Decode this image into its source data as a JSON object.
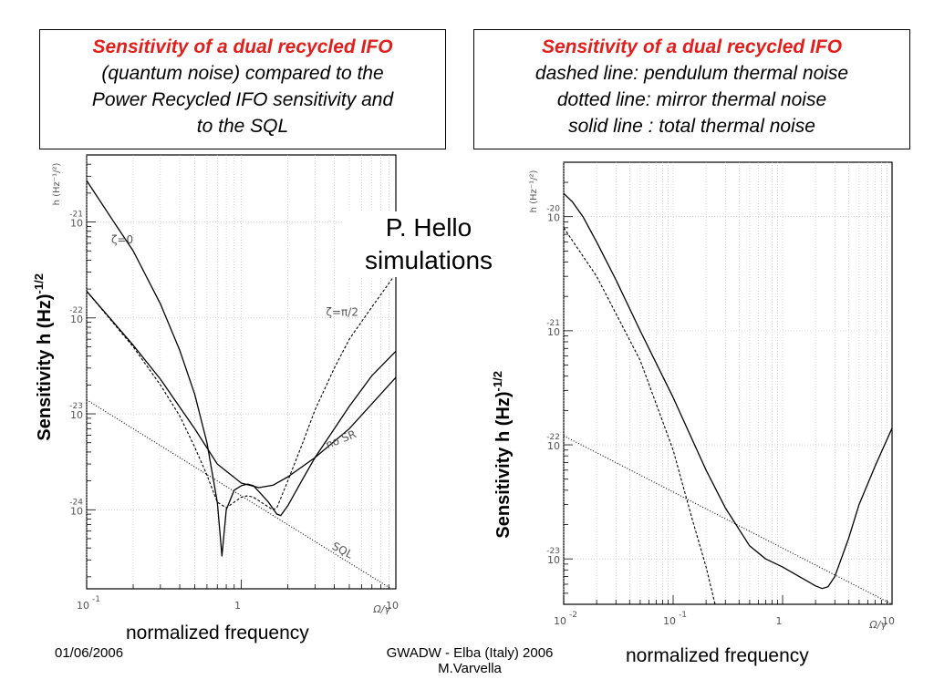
{
  "box_left": {
    "title": "Sensitivity of a dual recycled IFO",
    "lines": [
      "(quantum noise) compared to the",
      "Power Recycled IFO sensitivity and",
      "to the SQL"
    ]
  },
  "box_right": {
    "title": "Sensitivity of a dual recycled IFO",
    "lines": [
      "dashed line: pendulum thermal noise",
      "dotted line: mirror thermal noise",
      "solid line : total thermal noise"
    ]
  },
  "simulation_note": [
    "P. Hello",
    "simulations"
  ],
  "footer": {
    "date": "01/06/2006",
    "conference": "GWADW - Elba (Italy) 2006",
    "author": "M.Varvella"
  },
  "chart_data": [
    {
      "type": "line",
      "log_x": true,
      "log_y": true,
      "xlim": [
        0.1,
        10
      ],
      "ylim": [
        1.5e-25,
        5e-21
      ],
      "grid": true,
      "outer_xlabel": "normalized frequency",
      "outer_ylabel": "Sensitivity h (Hz)",
      "outer_ylabel_sup": "-1/2",
      "axis_xlabel": "Ω/γ",
      "axis_ylabel": "h (Hz⁻¹/²)",
      "x_ticks": [
        {
          "value": 0.1,
          "base": "10",
          "exp": "-1"
        },
        {
          "value": 1,
          "base": "1",
          "exp": ""
        },
        {
          "value": 10,
          "base": "10",
          "exp": ""
        }
      ],
      "y_ticks": [
        {
          "value": 1e-24,
          "base": "10",
          "exp": "-24"
        },
        {
          "value": 1e-23,
          "base": "10",
          "exp": "-23"
        },
        {
          "value": 1e-22,
          "base": "10",
          "exp": "-22"
        },
        {
          "value": 1e-21,
          "base": "10",
          "exp": "-21"
        }
      ],
      "annotations": [
        {
          "text": "ζ=0",
          "x": 0.17,
          "y": 6e-22
        },
        {
          "text": "ζ=π/2",
          "x": 4.5,
          "y": 1.05e-22
        },
        {
          "text": "no SR",
          "x": 4.5,
          "y": 5e-24
        },
        {
          "text": "SQL",
          "x": 4.4,
          "y": 3.5e-25
        }
      ],
      "series": [
        {
          "style": "solid",
          "x": [
            0.1,
            0.15,
            0.2,
            0.3,
            0.4,
            0.5,
            0.6,
            0.7,
            0.75,
            0.8,
            0.9,
            1.0,
            1.1,
            1.2,
            1.3,
            1.5,
            1.7,
            1.8,
            2.0,
            2.5,
            3,
            4,
            5,
            7,
            10
          ],
          "y": [
            2.7e-21,
            1e-21,
            5e-22,
            1.4e-22,
            4.6e-23,
            1.6e-23,
            5e-24,
            1.2e-24,
            3.3e-25,
            1e-24,
            1.6e-24,
            1.78e-24,
            1.85e-24,
            1.78e-24,
            1.55e-24,
            1.2e-24,
            9e-25,
            8.7e-25,
            1.1e-24,
            2.1e-24,
            3.5e-24,
            7e-24,
            1.2e-23,
            2.5e-23,
            4.5e-23
          ]
        },
        {
          "style": "solid",
          "x": [
            0.1,
            0.2,
            0.3,
            0.5,
            0.7,
            1.0,
            1.3,
            1.6,
            2.0,
            3,
            5,
            10
          ],
          "y": [
            1.9e-22,
            5.2e-23,
            2.3e-23,
            7e-24,
            3e-24,
            1.9e-24,
            1.7e-24,
            1.8e-24,
            2.2e-24,
            3.5e-24,
            7e-24,
            2.4e-23
          ]
        },
        {
          "style": "dashed",
          "x": [
            0.1,
            0.2,
            0.3,
            0.4,
            0.5,
            0.6,
            0.7,
            0.8,
            0.9,
            1.0,
            1.1,
            1.2,
            1.4,
            1.6,
            1.7,
            2.0,
            2.5,
            3,
            4,
            5,
            7,
            10
          ],
          "y": [
            1.9e-22,
            5e-23,
            2e-23,
            9.5e-24,
            4.5e-24,
            2.3e-24,
            1.2e-24,
            1.05e-24,
            1.2e-24,
            1.35e-24,
            1.4e-24,
            1.35e-24,
            1.15e-24,
            1e-24,
            1.05e-24,
            2e-24,
            5e-24,
            1.1e-23,
            3e-23,
            6e-23,
            1.3e-22,
            2.9e-22
          ]
        },
        {
          "style": "dotted",
          "x": [
            0.1,
            10
          ],
          "y": [
            1.4e-23,
            1.4e-25
          ]
        }
      ]
    },
    {
      "type": "line",
      "log_x": true,
      "log_y": true,
      "xlim": [
        0.01,
        10
      ],
      "ylim": [
        4e-24,
        3e-20
      ],
      "grid": true,
      "outer_xlabel": "normalized frequency",
      "outer_ylabel": "Sensitivity h (Hz)",
      "outer_ylabel_sup": "-1/2",
      "axis_xlabel": "Ω/γ",
      "axis_ylabel": "h (Hz⁻¹/²)",
      "x_ticks": [
        {
          "value": 0.01,
          "base": "10",
          "exp": "-2"
        },
        {
          "value": 0.1,
          "base": "10",
          "exp": "-1"
        },
        {
          "value": 1,
          "base": "1",
          "exp": ""
        },
        {
          "value": 10,
          "base": "10",
          "exp": ""
        }
      ],
      "y_ticks": [
        {
          "value": 1e-23,
          "base": "10",
          "exp": "-23"
        },
        {
          "value": 1e-22,
          "base": "10",
          "exp": "-22"
        },
        {
          "value": 1e-21,
          "base": "10",
          "exp": "-21"
        },
        {
          "value": 1e-20,
          "base": "10",
          "exp": "-20"
        }
      ],
      "series": [
        {
          "style": "solid",
          "x": [
            0.01,
            0.012,
            0.015,
            0.02,
            0.03,
            0.05,
            0.1,
            0.2,
            0.3,
            0.5,
            0.7,
            1.0,
            1.5,
            2.0,
            2.3,
            2.6,
            3,
            4,
            5,
            7,
            10
          ],
          "y": [
            1.6e-20,
            1.35e-20,
            1e-20,
            6e-21,
            2.8e-21,
            1e-21,
            2.6e-22,
            6e-23,
            2.8e-23,
            1.3e-23,
            1e-23,
            8.5e-24,
            6.8e-24,
            5.8e-24,
            5.5e-24,
            5.7e-24,
            7e-24,
            1.5e-23,
            3e-23,
            6.5e-23,
            1.4e-22
          ]
        },
        {
          "style": "dashed",
          "x": [
            0.01,
            0.02,
            0.05,
            0.1,
            0.15,
            0.2,
            0.25
          ],
          "y": [
            8e-21,
            3e-21,
            5.5e-22,
            9e-23,
            2.2e-23,
            8.5e-24,
            3.5e-24
          ]
        },
        {
          "style": "dotted",
          "x": [
            0.01,
            10
          ],
          "y": [
            1.2e-22,
            4e-24
          ]
        }
      ]
    }
  ]
}
